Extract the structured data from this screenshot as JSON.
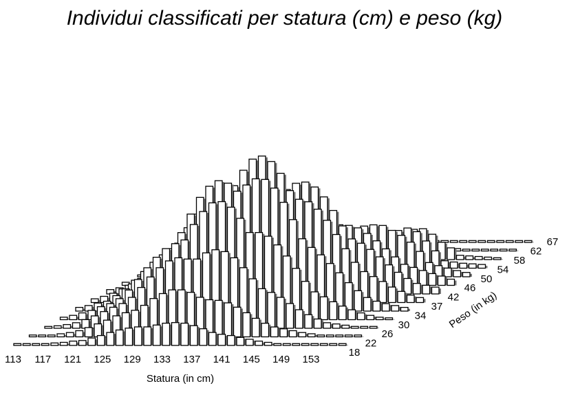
{
  "chart_data": {
    "type": "bar3d",
    "title": "Individui classificati per statura (cm) e peso (kg)",
    "xlabel": "Statura (in cm)",
    "ylabel": "Peso (in kg)",
    "x_ticks": [
      "113",
      "117",
      "121",
      "125",
      "129",
      "133",
      "137",
      "141",
      "145",
      "149",
      "153"
    ],
    "y_ticks": [
      "18",
      "22",
      "26",
      "30",
      "34",
      "37",
      "42",
      "46",
      "50",
      "54",
      "58",
      "62",
      "67"
    ],
    "grid": false,
    "legend": "none"
  }
}
